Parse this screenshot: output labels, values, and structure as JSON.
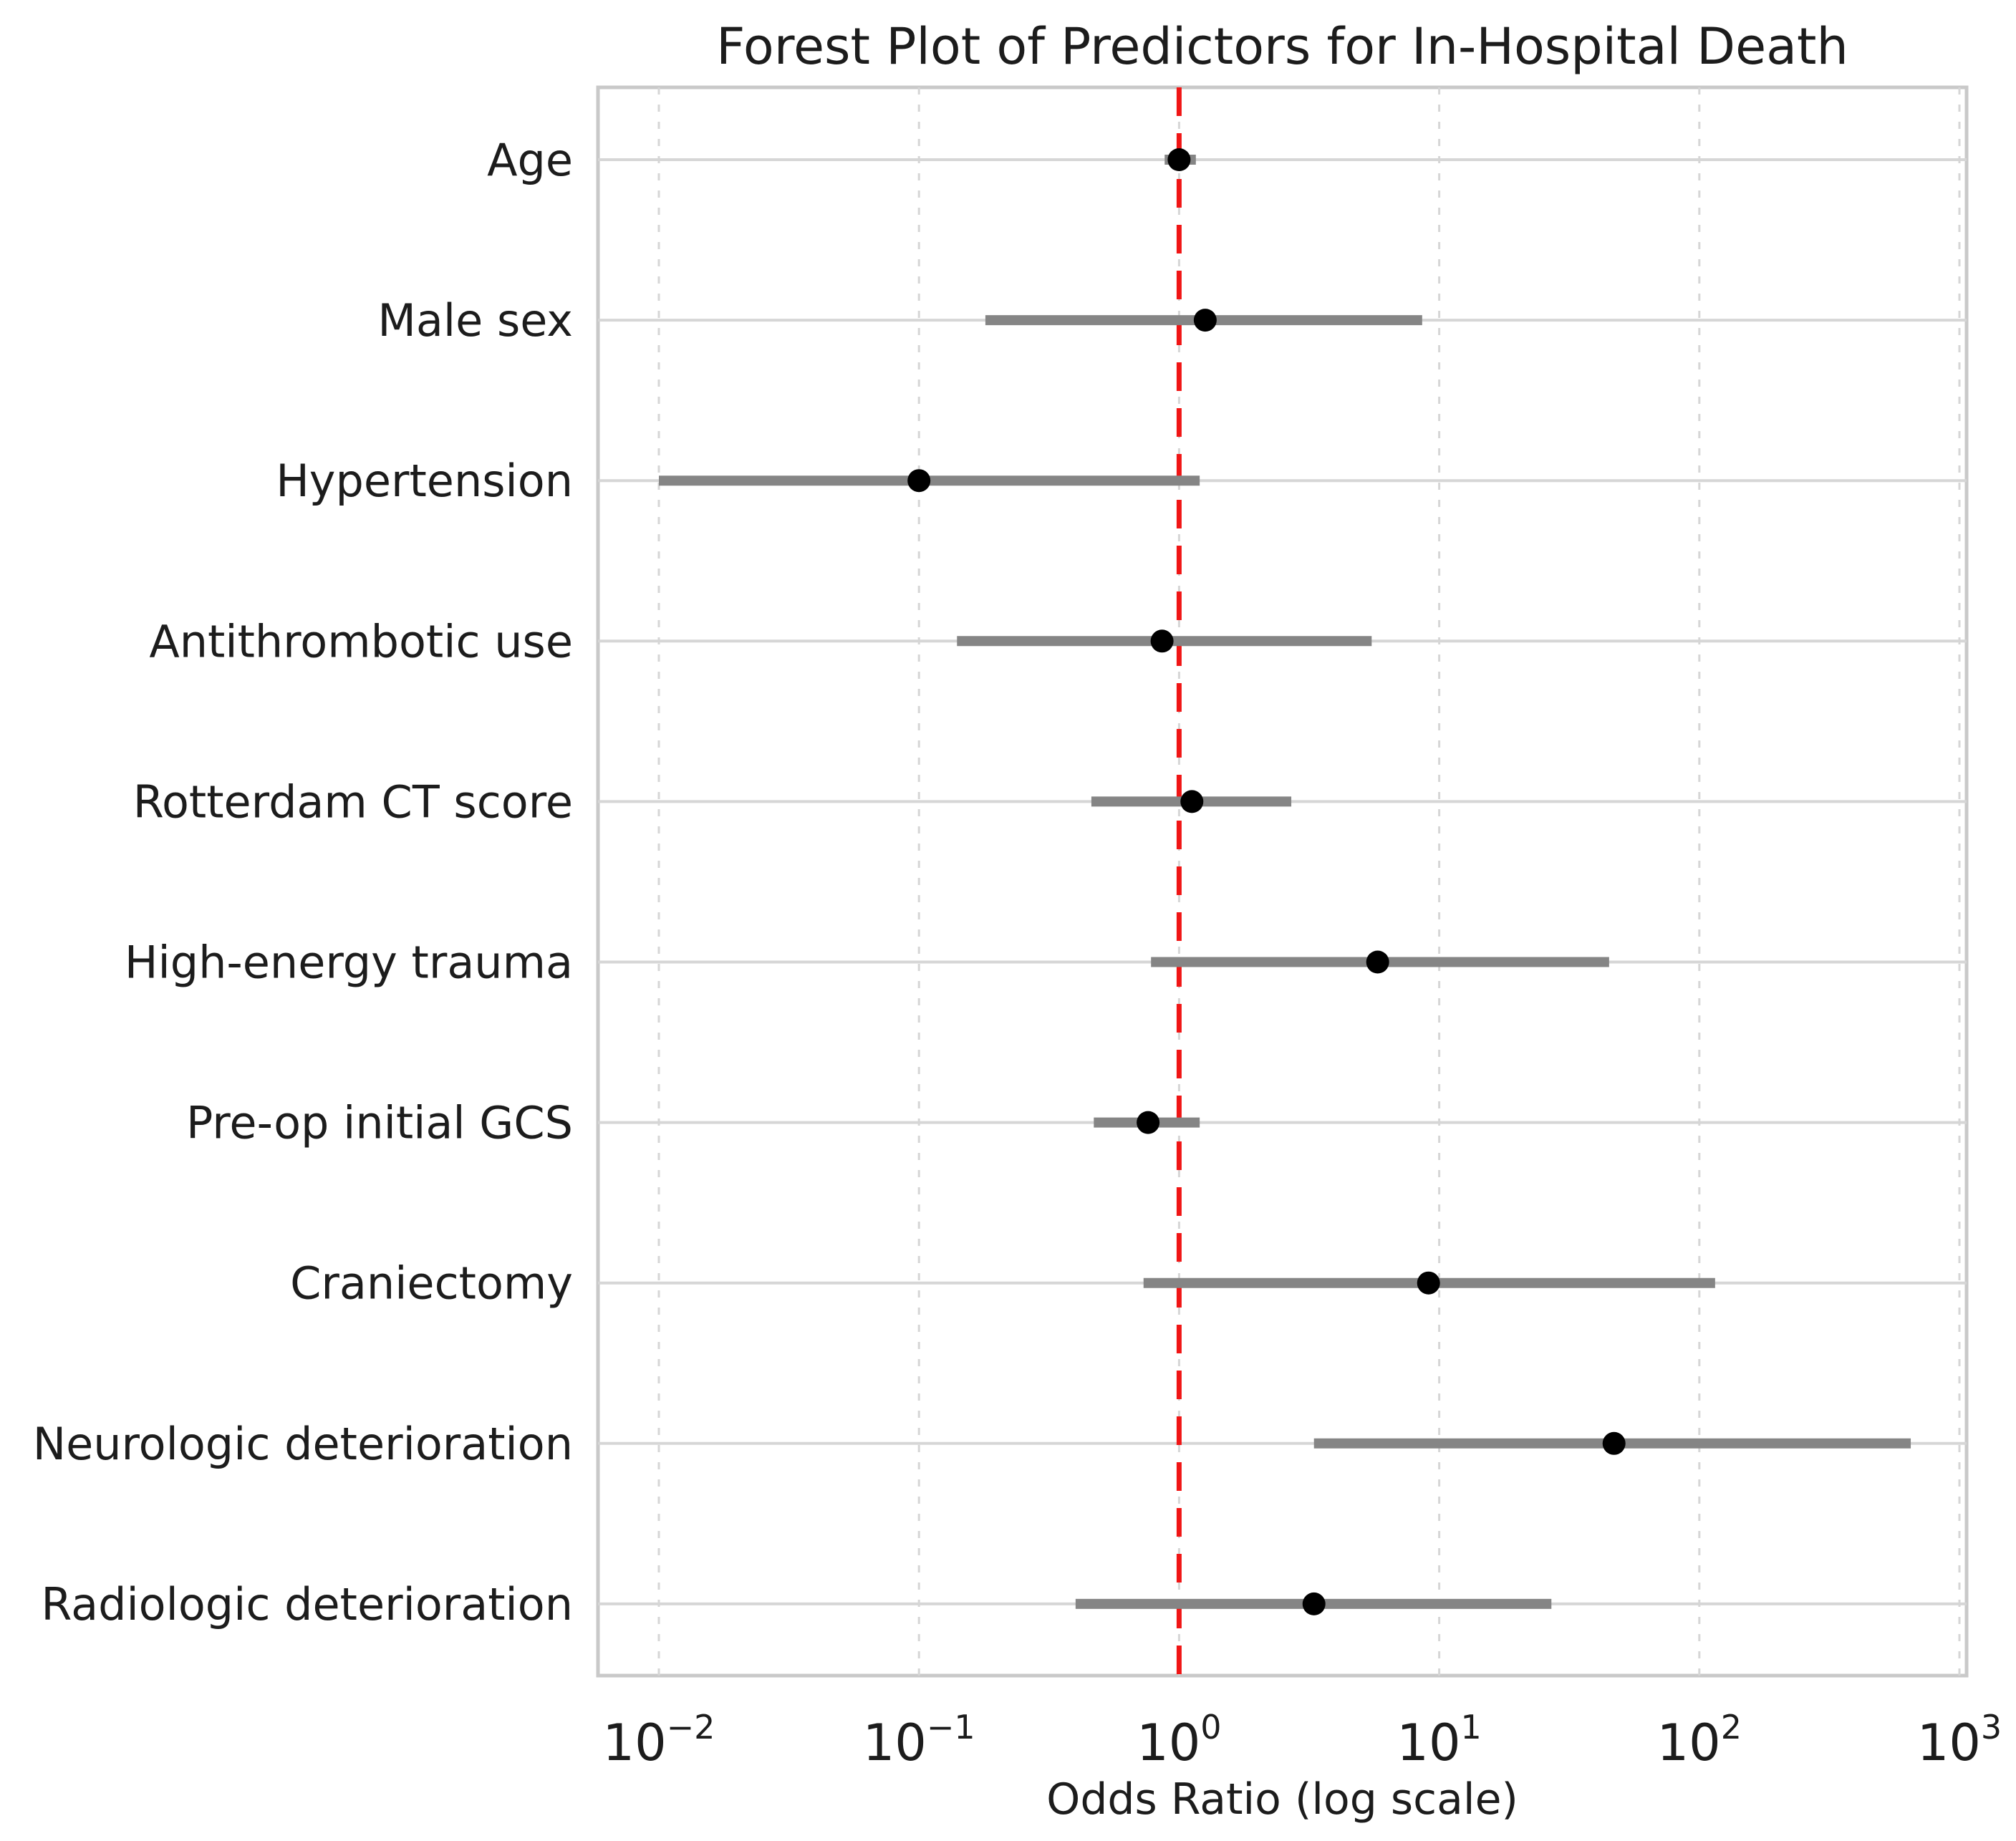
{
  "chart_data": {
    "type": "scatter",
    "subtype": "forest-plot",
    "title": "Forest Plot of Predictors for In-Hospital Death",
    "xlabel": "Odds Ratio (log scale)",
    "ylabel": "",
    "x_scale": "log",
    "x_range": [
      0.0058,
      1050
    ],
    "grid": true,
    "legend": "none",
    "reference_line": {
      "value": 1,
      "style": "dashed",
      "color": "#f01515"
    },
    "x_ticks": [
      {
        "value": 0.01,
        "display": "10⁻²",
        "base": "10",
        "exp": "−2"
      },
      {
        "value": 0.1,
        "display": "10⁻¹",
        "base": "10",
        "exp": "−1"
      },
      {
        "value": 1,
        "display": "10⁰",
        "base": "10",
        "exp": "0"
      },
      {
        "value": 10,
        "display": "10¹",
        "base": "10",
        "exp": "1"
      },
      {
        "value": 100,
        "display": "10²",
        "base": "10",
        "exp": "2"
      },
      {
        "value": 1000,
        "display": "10³",
        "base": "10",
        "exp": "3"
      }
    ],
    "categories": [
      "Age",
      "Male sex",
      "Hypertension",
      "Antithrombotic use",
      "Rotterdam CT score",
      "High-energy trauma",
      "Pre-op initial GCS",
      "Craniectomy",
      "Neurologic deterioration",
      "Radiologic deterioration"
    ],
    "rows": [
      {
        "label": "Age",
        "or": 1.0,
        "ci_low": 0.88,
        "ci_high": 1.16
      },
      {
        "label": "Male sex",
        "or": 1.26,
        "ci_low": 0.18,
        "ci_high": 8.6
      },
      {
        "label": "Hypertension",
        "or": 0.1,
        "ci_low": 0.01,
        "ci_high": 1.2
      },
      {
        "label": "Antithrombotic use",
        "or": 0.86,
        "ci_low": 0.14,
        "ci_high": 5.5
      },
      {
        "label": "Rotterdam CT score",
        "or": 1.12,
        "ci_low": 0.46,
        "ci_high": 2.7
      },
      {
        "label": "High-energy trauma",
        "or": 5.8,
        "ci_low": 0.78,
        "ci_high": 45
      },
      {
        "label": "Pre-op initial GCS",
        "or": 0.76,
        "ci_low": 0.47,
        "ci_high": 1.2
      },
      {
        "label": "Craniectomy",
        "or": 9.1,
        "ci_low": 0.73,
        "ci_high": 115
      },
      {
        "label": "Neurologic deterioration",
        "or": 47,
        "ci_low": 3.3,
        "ci_high": 650
      },
      {
        "label": "Radiologic deterioration",
        "or": 3.3,
        "ci_low": 0.4,
        "ci_high": 27
      }
    ],
    "colors": {
      "point": "#000000",
      "ci_bar": "#858585",
      "reference": "#f01515",
      "grid": "#d6d6d6",
      "spine": "#c9c9c9",
      "text": "#1c1c1c",
      "background": "#ffffff"
    }
  }
}
